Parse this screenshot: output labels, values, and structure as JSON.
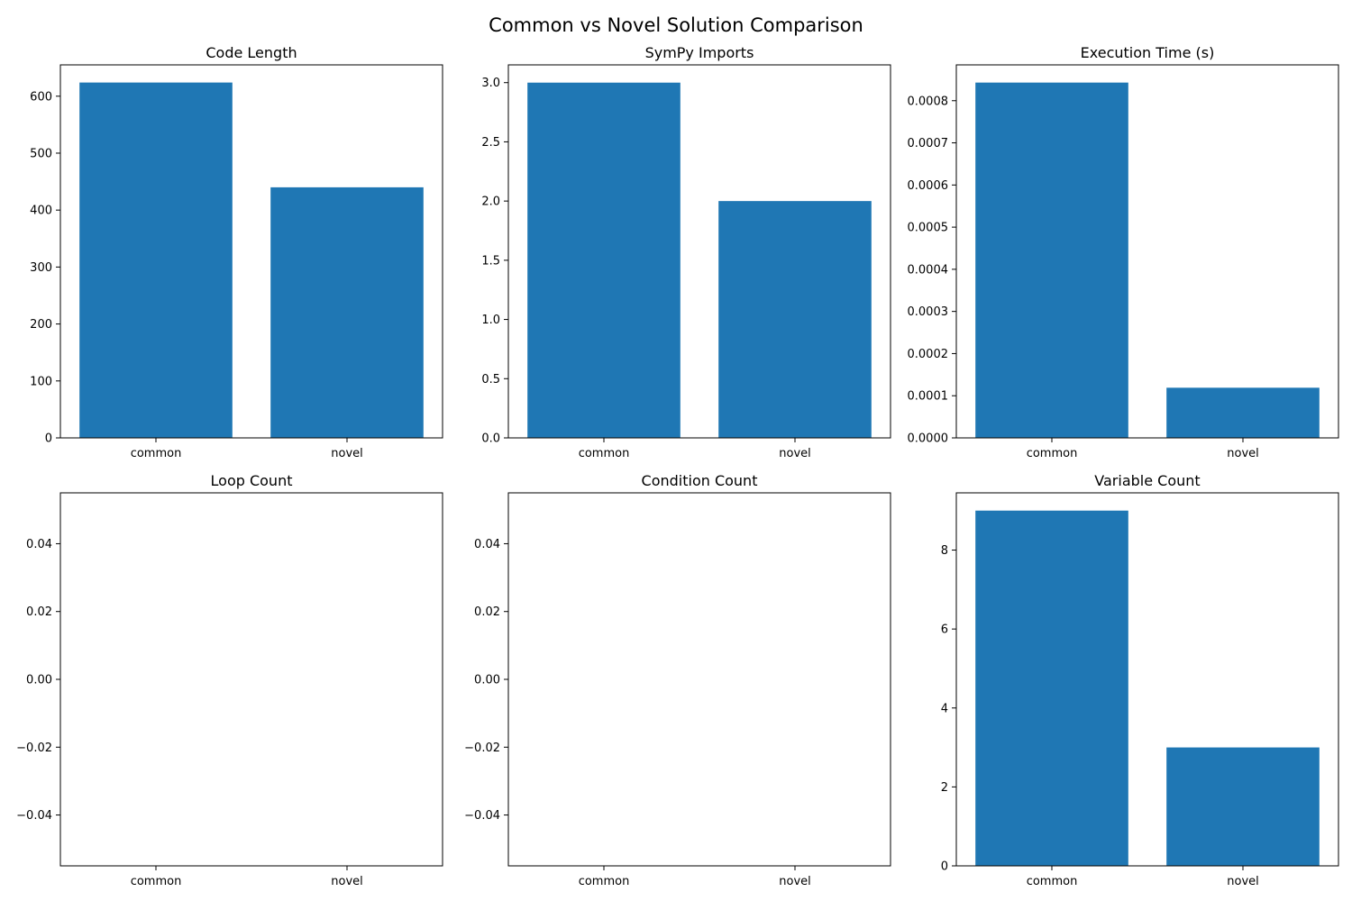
{
  "figure": {
    "title": "Common vs Novel Solution Comparison"
  },
  "chart_data": [
    {
      "type": "bar",
      "title": "Code Length",
      "categories": [
        "common",
        "novel"
      ],
      "values": [
        624,
        440
      ],
      "ylim": [
        0,
        655
      ],
      "yticks": [
        "0",
        "100",
        "200",
        "300",
        "400",
        "500",
        "600"
      ],
      "ytick_values": [
        0,
        100,
        200,
        300,
        400,
        500,
        600
      ],
      "color": "#1f77b4",
      "grid": false
    },
    {
      "type": "bar",
      "title": "SymPy Imports",
      "categories": [
        "common",
        "novel"
      ],
      "values": [
        3,
        2
      ],
      "ylim": [
        0,
        3.15
      ],
      "yticks": [
        "0.0",
        "0.5",
        "1.0",
        "1.5",
        "2.0",
        "2.5",
        "3.0"
      ],
      "ytick_values": [
        0,
        0.5,
        1.0,
        1.5,
        2.0,
        2.5,
        3.0
      ],
      "color": "#1f77b4",
      "grid": false
    },
    {
      "type": "bar",
      "title": "Execution Time (s)",
      "categories": [
        "common",
        "novel"
      ],
      "values": [
        0.000843,
        0.000119
      ],
      "ylim": [
        0,
        0.000885
      ],
      "yticks": [
        "0.0000",
        "0.0001",
        "0.0002",
        "0.0003",
        "0.0004",
        "0.0005",
        "0.0006",
        "0.0007",
        "0.0008"
      ],
      "ytick_values": [
        0,
        0.0001,
        0.0002,
        0.0003,
        0.0004,
        0.0005,
        0.0006,
        0.0007,
        0.0008
      ],
      "color": "#1f77b4",
      "grid": false
    },
    {
      "type": "bar",
      "title": "Loop Count",
      "categories": [
        "common",
        "novel"
      ],
      "values": [
        0,
        0
      ],
      "ylim": [
        -0.055,
        0.055
      ],
      "yticks": [
        "−0.04",
        "−0.02",
        "0.00",
        "0.02",
        "0.04"
      ],
      "ytick_values": [
        -0.04,
        -0.02,
        0,
        0.02,
        0.04
      ],
      "color": "#1f77b4",
      "grid": false
    },
    {
      "type": "bar",
      "title": "Condition Count",
      "categories": [
        "common",
        "novel"
      ],
      "values": [
        0,
        0
      ],
      "ylim": [
        -0.055,
        0.055
      ],
      "yticks": [
        "−0.04",
        "−0.02",
        "0.00",
        "0.02",
        "0.04"
      ],
      "ytick_values": [
        -0.04,
        -0.02,
        0,
        0.02,
        0.04
      ],
      "color": "#1f77b4",
      "grid": false
    },
    {
      "type": "bar",
      "title": "Variable Count",
      "categories": [
        "common",
        "novel"
      ],
      "values": [
        9,
        3
      ],
      "ylim": [
        0,
        9.45
      ],
      "yticks": [
        "0",
        "2",
        "4",
        "6",
        "8"
      ],
      "ytick_values": [
        0,
        2,
        4,
        6,
        8
      ],
      "color": "#1f77b4",
      "grid": false
    }
  ]
}
